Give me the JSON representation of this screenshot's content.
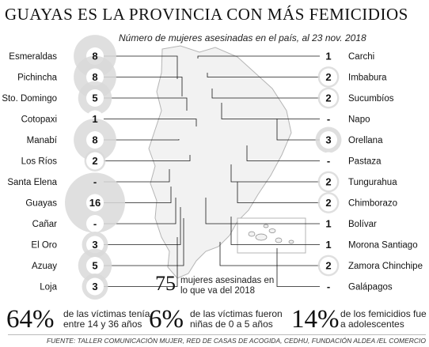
{
  "header": {
    "title": "GUAYAS ES LA PROVINCIA CON MÁS FEMICIDIOS",
    "subtitle": "Número de mujeres asesinadas en el país, al 23 nov. 2018"
  },
  "chart_data": {
    "type": "bubble",
    "title": "GUAYAS ES LA PROVINCIA CON MÁS FEMICIDIOS",
    "subtitle": "Número de mujeres asesinadas en el país, al 23 nov. 2018",
    "left": [
      {
        "name": "Esmeraldas",
        "value": 8,
        "label": "8"
      },
      {
        "name": "Pichincha",
        "value": 8,
        "label": "8"
      },
      {
        "name": "Sto. Domingo",
        "value": 5,
        "label": "5"
      },
      {
        "name": "Cotopaxi",
        "value": 1,
        "label": "1"
      },
      {
        "name": "Manabí",
        "value": 8,
        "label": "8"
      },
      {
        "name": "Los Ríos",
        "value": 2,
        "label": "2"
      },
      {
        "name": "Santa Elena",
        "value": 0,
        "label": "-"
      },
      {
        "name": "Guayas",
        "value": 16,
        "label": "16"
      },
      {
        "name": "Cañar",
        "value": 0,
        "label": "-"
      },
      {
        "name": "El Oro",
        "value": 3,
        "label": "3"
      },
      {
        "name": "Azuay",
        "value": 5,
        "label": "5"
      },
      {
        "name": "Loja",
        "value": 3,
        "label": "3"
      }
    ],
    "right": [
      {
        "name": "Carchi",
        "value": 1,
        "label": "1"
      },
      {
        "name": "Imbabura",
        "value": 2,
        "label": "2"
      },
      {
        "name": "Sucumbíos",
        "value": 2,
        "label": "2"
      },
      {
        "name": "Napo",
        "value": 0,
        "label": "-"
      },
      {
        "name": "Orellana",
        "value": 3,
        "label": "3"
      },
      {
        "name": "Pastaza",
        "value": 0,
        "label": "-"
      },
      {
        "name": "Tungurahua",
        "value": 2,
        "label": "2"
      },
      {
        "name": "Chimborazo",
        "value": 2,
        "label": "2"
      },
      {
        "name": "Bolívar",
        "value": 1,
        "label": "1"
      },
      {
        "name": "Morona Santiago",
        "value": 1,
        "label": "1"
      },
      {
        "name": "Zamora Chinchipe",
        "value": 2,
        "label": "2"
      },
      {
        "name": "Galápagos",
        "value": 0,
        "label": "-"
      }
    ]
  },
  "total": {
    "value": "75",
    "text": "mujeres asesinadas en lo que va del 2018"
  },
  "stats": [
    {
      "value": "64%",
      "text": "de las víctimas tenía entre 14 y 36 años"
    },
    {
      "value": "6%",
      "text": "de las víctimas fueron niñas de 0 a 5 años"
    },
    {
      "value": "14%",
      "text": "de los femicidios fue a adolescentes"
    }
  ],
  "source": "FUENTE: TALLER COMUNICACIÓN MUJER, RED DE CASAS DE ACOGIDA, CEDHU, FUNDACIÓN ALDEA /EL COMERCIO",
  "colors": {
    "bubble": "#d9d9d9",
    "line": "#1a1a1a",
    "map": "#f2f2f2",
    "map_stroke": "#b5b5b5"
  }
}
